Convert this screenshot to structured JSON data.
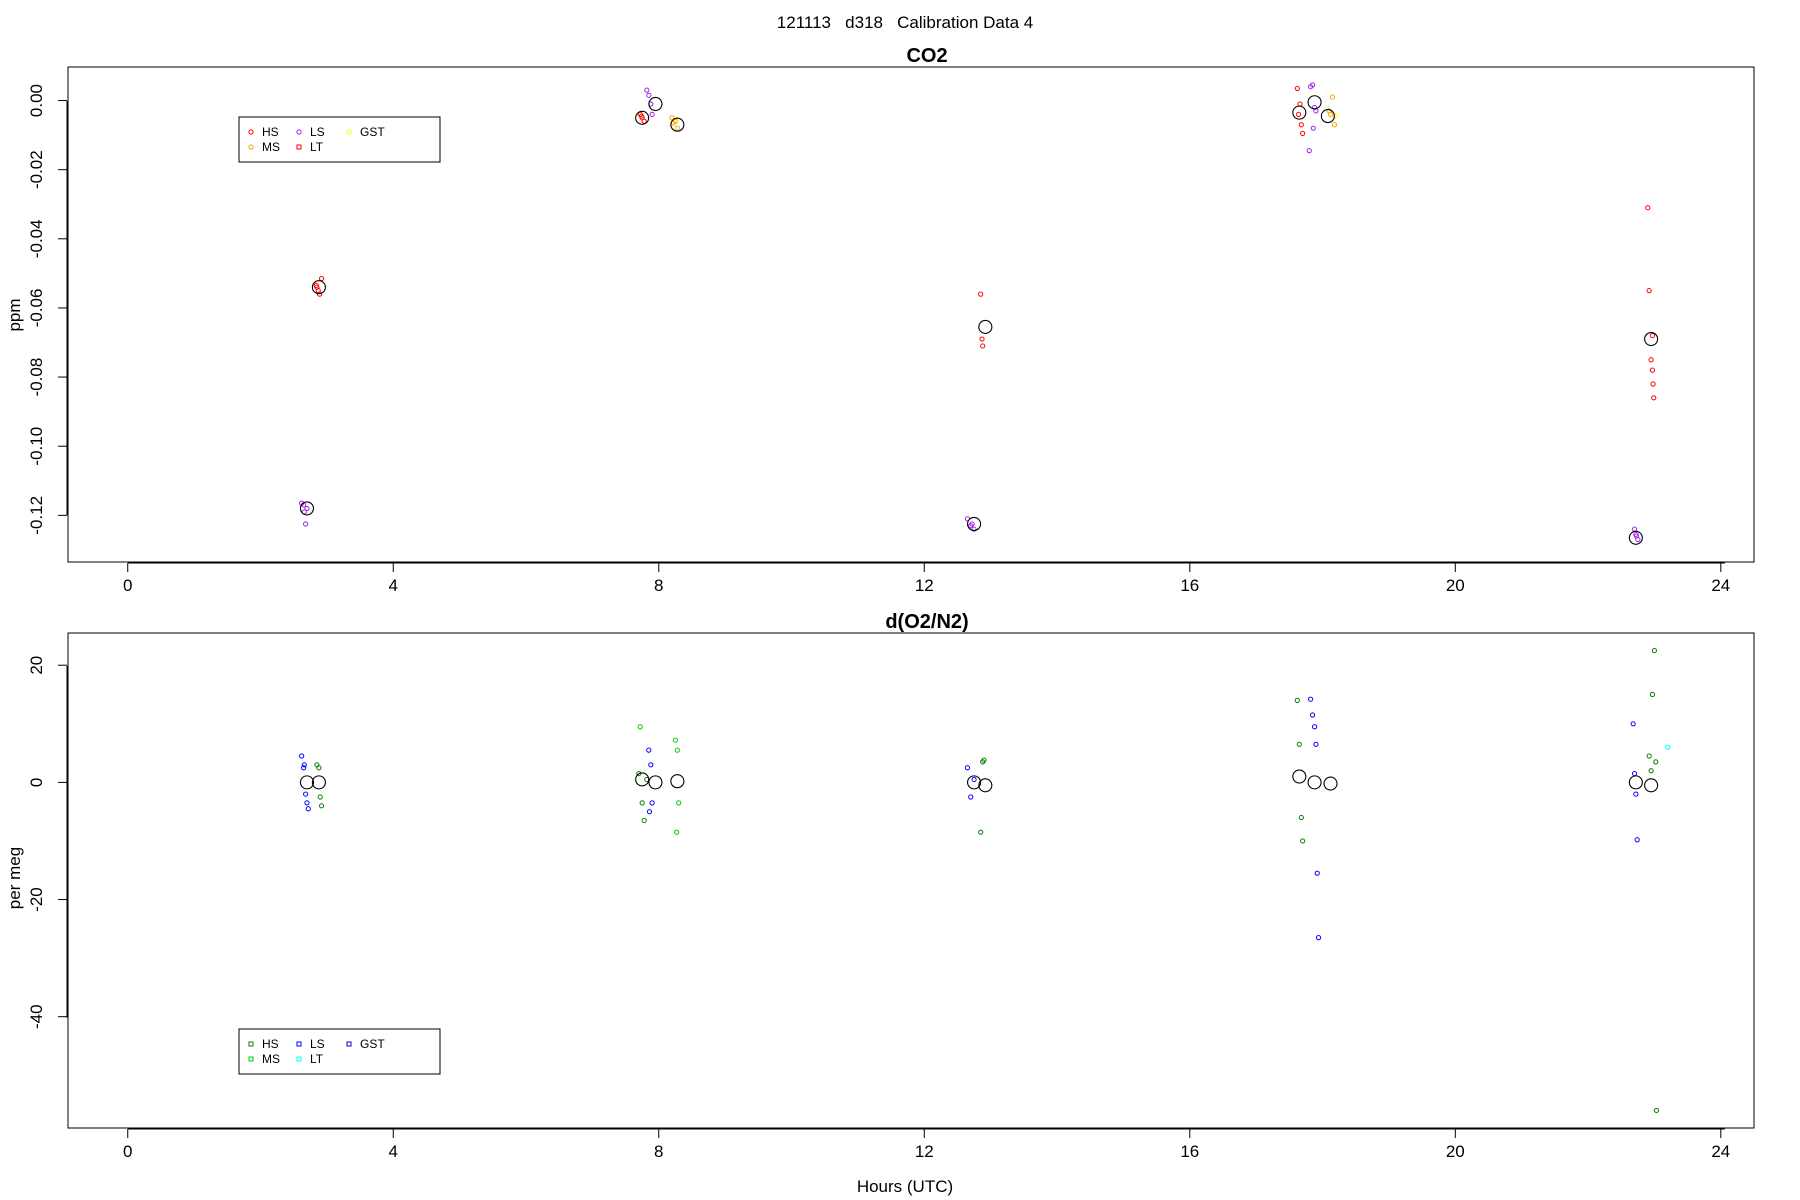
{
  "suptitle": "121113   d318   Calibration Data 4",
  "chart_data": [
    {
      "type": "scatter",
      "title": "CO2",
      "xlabel": "",
      "ylabel": "ppm",
      "xlim": [
        -0.9,
        24.5
      ],
      "ylim": [
        -0.1335,
        0.0097
      ],
      "xticks": [
        "0",
        "4",
        "8",
        "12",
        "16",
        "20",
        "24"
      ],
      "yticks": [
        "0.00",
        "-0.02",
        "-0.04",
        "-0.06",
        "-0.08",
        "-0.10",
        "-0.12"
      ],
      "legend": {
        "placement": "top-left",
        "entries": [
          {
            "label": "HS",
            "color": "#ff0000",
            "symbol": "circle"
          },
          {
            "label": "MS",
            "color": "#ffa500",
            "symbol": "circle"
          },
          {
            "label": "LS",
            "color": "#a020f0",
            "symbol": "circle"
          },
          {
            "label": "LT",
            "color": "#ff0000",
            "symbol": "square"
          },
          {
            "label": "GST",
            "color": "#ffff00",
            "symbol": "circle"
          }
        ]
      },
      "series": [
        {
          "name": "HS",
          "color": "#ff0000",
          "x": [
            2.85,
            2.87,
            2.89,
            2.84,
            7.72,
            7.75,
            7.78,
            7.74,
            12.85,
            12.87,
            12.88,
            17.62,
            17.66,
            17.68,
            17.7,
            17.64,
            22.9,
            22.92,
            22.95,
            22.97,
            22.98,
            22.99
          ],
          "y": [
            -0.054,
            -0.055,
            -0.056,
            -0.0535,
            -0.004,
            -0.005,
            -0.006,
            -0.0045,
            -0.056,
            -0.069,
            -0.071,
            0.0035,
            -0.001,
            -0.007,
            -0.0095,
            -0.004,
            -0.031,
            -0.055,
            -0.075,
            -0.078,
            -0.082,
            -0.086
          ]
        },
        {
          "name": "MS",
          "color": "#ffa500",
          "x": [
            8.2,
            8.25,
            8.28,
            8.22,
            18.1,
            18.15,
            18.18,
            18.12
          ],
          "y": [
            -0.005,
            -0.006,
            -0.008,
            -0.0065,
            -0.003,
            0.001,
            -0.007,
            -0.004
          ]
        },
        {
          "name": "LS",
          "color": "#a020f0",
          "x": [
            2.62,
            2.65,
            2.68,
            2.7,
            2.66,
            7.82,
            7.85,
            7.88,
            7.9,
            12.65,
            12.7,
            12.75,
            12.72,
            17.82,
            17.85,
            17.88,
            17.9,
            17.86,
            17.8,
            22.7,
            22.72,
            22.75,
            22.73
          ],
          "y": [
            -0.1165,
            -0.117,
            -0.1225,
            -0.118,
            -0.119,
            0.003,
            0.0015,
            -0.001,
            -0.004,
            -0.121,
            -0.123,
            -0.124,
            -0.1225,
            0.004,
            0.0045,
            -0.002,
            -0.003,
            -0.008,
            -0.0145,
            -0.124,
            -0.1255,
            -0.127,
            -0.126
          ]
        },
        {
          "name": "LT",
          "color": "#ff0000",
          "x": [
            2.92,
            22.97
          ],
          "y": [
            -0.0515,
            -0.068
          ]
        },
        {
          "name": "GST",
          "color": "#ffff00",
          "x": [
            8.27,
            18.2
          ],
          "y": [
            -0.0055,
            -0.0045
          ]
        },
        {
          "name": "",
          "color": "#000000",
          "x": [
            2.7,
            2.88,
            7.75,
            7.95,
            8.28,
            12.75,
            12.92,
            17.65,
            17.88,
            18.08,
            22.72,
            22.95
          ],
          "y": [
            -0.118,
            -0.054,
            -0.005,
            -0.001,
            -0.007,
            -0.1225,
            -0.0655,
            -0.0035,
            -0.0005,
            -0.0045,
            -0.1265,
            -0.069
          ]
        }
      ]
    },
    {
      "type": "scatter",
      "title": "d(O2/N2)",
      "xlabel": "Hours (UTC)",
      "ylabel": "per meg",
      "xlim": [
        -0.9,
        24.5
      ],
      "ylim": [
        -59,
        25.5
      ],
      "xticks": [
        "0",
        "4",
        "8",
        "12",
        "16",
        "20",
        "24"
      ],
      "yticks": [
        "20",
        "0",
        "-20",
        "-40"
      ],
      "legend": {
        "placement": "bottom-left",
        "entries": [
          {
            "label": "HS",
            "color": "#008000",
            "symbol": "square"
          },
          {
            "label": "MS",
            "color": "#00cc00",
            "symbol": "square"
          },
          {
            "label": "LS",
            "color": "#0000ff",
            "symbol": "square"
          },
          {
            "label": "LT",
            "color": "#00ffff",
            "symbol": "square"
          },
          {
            "label": "GST",
            "color": "#0000cc",
            "symbol": "square"
          }
        ]
      },
      "series": [
        {
          "name": "HS",
          "color": "#008000",
          "x": [
            2.85,
            2.88,
            2.9,
            2.92,
            7.7,
            7.75,
            7.78,
            7.82,
            12.85,
            12.88,
            12.9,
            17.62,
            17.65,
            17.68,
            17.7,
            22.92,
            22.95,
            22.97,
            23.0,
            23.02,
            23.03
          ],
          "y": [
            3.0,
            2.5,
            -2.5,
            -4.0,
            1.5,
            -3.5,
            -6.5,
            0.5,
            -8.5,
            3.5,
            3.8,
            14.0,
            6.5,
            -6.0,
            -10.0,
            4.5,
            2.0,
            15.0,
            22.5,
            3.5,
            -56.0
          ]
        },
        {
          "name": "MS",
          "color": "#00cc00",
          "x": [
            7.72,
            8.25,
            8.28,
            8.3,
            8.27
          ],
          "y": [
            9.5,
            7.2,
            5.5,
            -3.5,
            -8.5
          ]
        },
        {
          "name": "LS",
          "color": "#0000ff",
          "x": [
            2.62,
            2.65,
            2.68,
            2.7,
            2.72,
            2.66,
            7.85,
            7.88,
            7.9,
            7.86,
            12.65,
            12.7,
            12.75,
            17.82,
            17.85,
            17.88,
            17.9,
            17.92,
            17.94,
            22.68,
            22.7,
            22.72,
            22.74
          ],
          "y": [
            4.5,
            2.5,
            -2.0,
            -3.5,
            -4.5,
            3.0,
            5.5,
            3.0,
            -3.5,
            -5.0,
            2.5,
            -2.5,
            0.5,
            14.2,
            11.5,
            9.5,
            6.5,
            -15.5,
            -26.5,
            10.0,
            1.5,
            -2.0,
            -9.8
          ]
        },
        {
          "name": "LT",
          "color": "#00ffff",
          "x": [
            23.2
          ],
          "y": [
            6.0
          ]
        },
        {
          "name": "",
          "color": "#000000",
          "x": [
            2.7,
            2.88,
            7.75,
            7.95,
            8.28,
            12.75,
            12.92,
            17.65,
            17.88,
            18.12,
            22.72,
            22.95
          ],
          "y": [
            0.0,
            0.0,
            0.5,
            0.0,
            0.2,
            0.0,
            -0.5,
            1.0,
            0.0,
            -0.2,
            0.0,
            -0.5
          ]
        }
      ]
    }
  ]
}
